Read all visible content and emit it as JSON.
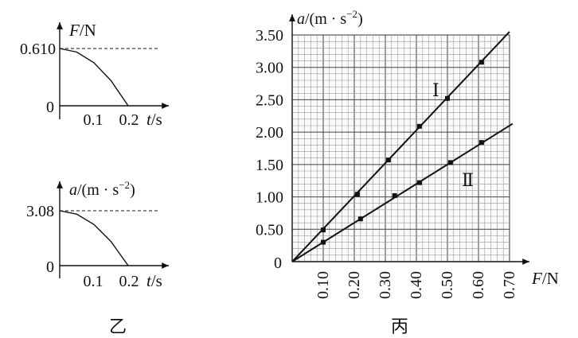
{
  "chart_data": [
    {
      "type": "line",
      "panel": "top-left",
      "ylabel_var": "F",
      "ylabel_unit": "/N",
      "xlabel_var": "t",
      "xlabel_unit": "/s",
      "origin_label": "0",
      "x_ticks": [
        "0.1",
        "0.2"
      ],
      "peak_label": "0.610",
      "x": [
        0,
        0.05,
        0.1,
        0.15,
        0.2
      ],
      "y": [
        0.61,
        0.572,
        0.458,
        0.267,
        0
      ]
    },
    {
      "type": "line",
      "panel": "bottom-left",
      "ylabel_var": "a",
      "ylabel_unit": "/(m · s",
      "ylabel_exp": "−2",
      "ylabel_close": ")",
      "xlabel_var": "t",
      "xlabel_unit": "/s",
      "origin_label": "0",
      "x_ticks": [
        "0.1",
        "0.2"
      ],
      "peak_label": "3.08",
      "x": [
        0,
        0.05,
        0.1,
        0.15,
        0.2
      ],
      "y": [
        3.08,
        2.89,
        2.31,
        1.35,
        0
      ]
    },
    {
      "type": "line",
      "panel": "right",
      "ylabel_var": "a",
      "ylabel_unit": "/(m · s",
      "ylabel_exp": "−2",
      "ylabel_close": ")",
      "xlabel_var": "F",
      "xlabel_unit": "/N",
      "origin_label": "0",
      "grid": true,
      "xlim": [
        0,
        0.7
      ],
      "ylim": [
        0,
        3.5
      ],
      "x_ticks": [
        "0.10",
        "0.20",
        "0.30",
        "0.40",
        "0.50",
        "0.60",
        "0.70"
      ],
      "y_ticks": [
        "0.50",
        "1.00",
        "1.50",
        "2.00",
        "2.50",
        "3.00",
        "3.50"
      ],
      "series": [
        {
          "name": "Ⅰ",
          "x": [
            0.1,
            0.21,
            0.31,
            0.41,
            0.5,
            0.61
          ],
          "y": [
            0.49,
            1.04,
            1.57,
            2.09,
            2.52,
            3.08
          ],
          "line_end": [
            0.7,
            3.55
          ]
        },
        {
          "name": "Ⅱ",
          "x": [
            0.1,
            0.22,
            0.33,
            0.41,
            0.51,
            0.61
          ],
          "y": [
            0.3,
            0.66,
            1.02,
            1.22,
            1.53,
            1.84
          ],
          "line_end": [
            0.71,
            2.13
          ]
        }
      ]
    }
  ],
  "captions": {
    "left": "乙",
    "right": "丙"
  }
}
